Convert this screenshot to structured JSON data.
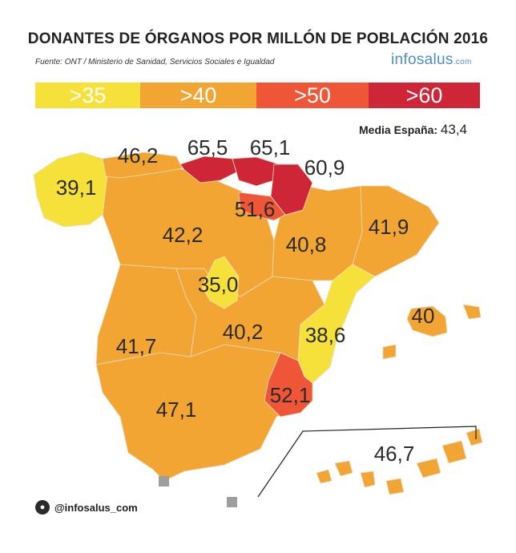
{
  "header": {
    "title": "DONANTES DE ÓRGANOS POR MILLÓN DE POBLACIÓN 2016",
    "source": "Fuente: ONT / Ministerio de Sanidad, Servicios Sociales e Igualdad",
    "brand": "infosalus",
    "brand_tld": ".com"
  },
  "legend": [
    {
      "label": ">35",
      "color": "#f6e13a"
    },
    {
      "label": ">40",
      "color": "#f3a533"
    },
    {
      "label": ">50",
      "color": "#ef5537"
    },
    {
      "label": ">60",
      "color": "#cf2637"
    }
  ],
  "media": {
    "label": "Media España:",
    "value": "43,4"
  },
  "regions": [
    {
      "name": "Galicia",
      "value": "39,1",
      "color": "#f6e13a"
    },
    {
      "name": "Asturias",
      "value": "46,2",
      "color": "#f3a533"
    },
    {
      "name": "Cantabria",
      "value": "65,5",
      "color": "#cf2637"
    },
    {
      "name": "País Vasco",
      "value": "65,1",
      "color": "#cf2637"
    },
    {
      "name": "Navarra",
      "value": "60,9",
      "color": "#cf2637"
    },
    {
      "name": "La Rioja",
      "value": "51,6",
      "color": "#ef5537"
    },
    {
      "name": "Castilla y León",
      "value": "42,2",
      "color": "#f3a533"
    },
    {
      "name": "Aragón",
      "value": "40,8",
      "color": "#f3a533"
    },
    {
      "name": "Cataluña",
      "value": "41,9",
      "color": "#f3a533"
    },
    {
      "name": "Madrid",
      "value": "35,0",
      "color": "#f6e13a"
    },
    {
      "name": "Castilla-La Mancha",
      "value": "40,2",
      "color": "#f3a533"
    },
    {
      "name": "Comunidad Valenciana",
      "value": "38,6",
      "color": "#f6e13a"
    },
    {
      "name": "Baleares",
      "value": "40",
      "color": "#f3a533"
    },
    {
      "name": "Extremadura",
      "value": "41,7",
      "color": "#f3a533"
    },
    {
      "name": "Murcia",
      "value": "52,1",
      "color": "#ef5537"
    },
    {
      "name": "Andalucía",
      "value": "47,1",
      "color": "#f3a533"
    },
    {
      "name": "Canarias",
      "value": "46,7",
      "color": "#f3a533"
    }
  ],
  "footer": {
    "handle": "@infosalus_com",
    "icon": "twitter-bird-icon"
  }
}
